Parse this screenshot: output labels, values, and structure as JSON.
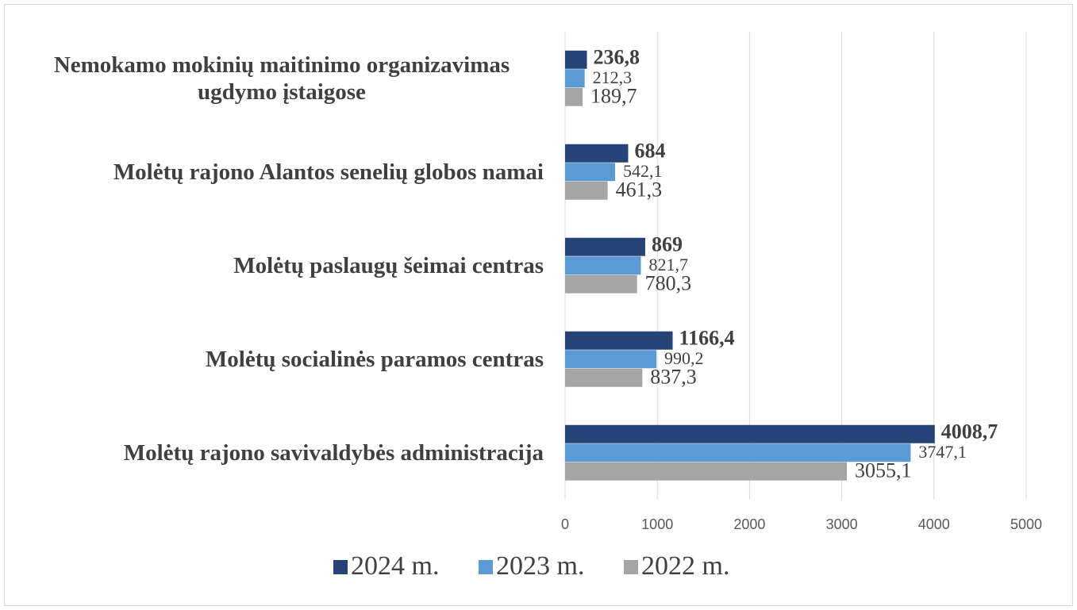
{
  "chart_data": {
    "type": "bar",
    "orientation": "horizontal",
    "categories": [
      "Nemokamo mokinių maitinimo organizavimas ugdymo įstaigose",
      "Molėtų rajono Alantos senelių globos namai",
      "Molėtų paslaugų šeimai centras",
      "Molėtų socialinės paramos centras",
      "Molėtų rajono savivaldybės administracija"
    ],
    "series": [
      {
        "name": "2024 m.",
        "color": "#264478",
        "values": [
          236.8,
          684,
          869,
          1166.4,
          4008.7
        ],
        "value_labels": [
          "236,8",
          "684",
          "869",
          "1166,4",
          "4008,7"
        ]
      },
      {
        "name": "2023 m.",
        "color": "#5b9bd5",
        "values": [
          212.3,
          542.1,
          821.7,
          990.2,
          3747.1
        ],
        "value_labels": [
          "212,3",
          "542,1",
          "821,7",
          "990,2",
          "3747,1"
        ]
      },
      {
        "name": "2022 m.",
        "color": "#a5a5a5",
        "values": [
          189.7,
          461.3,
          780.3,
          837.3,
          3055.1
        ],
        "value_labels": [
          "189,7",
          "461,3",
          "780,3",
          "837,3",
          "3055,1"
        ]
      }
    ],
    "xlim": [
      0,
      5000
    ],
    "xticks": [
      0,
      1000,
      2000,
      3000,
      4000,
      5000
    ],
    "grid": true,
    "legend": "bottom"
  }
}
